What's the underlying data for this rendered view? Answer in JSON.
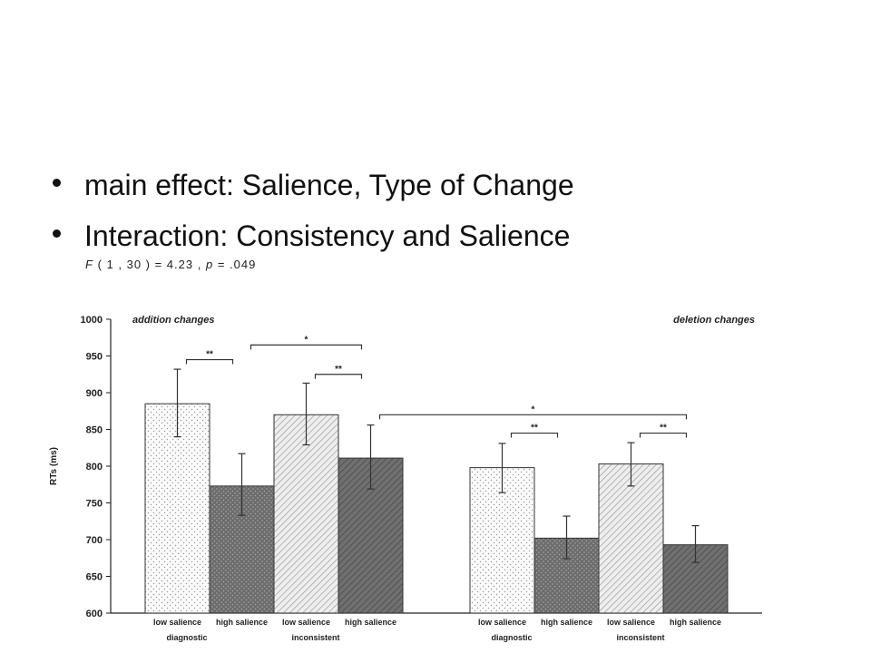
{
  "slide": {
    "bullets": [
      "main effect: Salience,  Type of Change",
      "Interaction: Consistency and Salience"
    ],
    "stat": {
      "f": "F",
      "df": "( 1 , 30 ) = 4.23 ,",
      "p": "p",
      "pval": "= .049"
    }
  },
  "chart_data": {
    "type": "bar",
    "ylabel": "RTs (ms)",
    "ylim": [
      600,
      1000
    ],
    "yticks": [
      600,
      650,
      700,
      750,
      800,
      850,
      900,
      950,
      1000
    ],
    "panels": [
      {
        "title": "addition changes",
        "groups": [
          "diagnostic",
          "inconsistent"
        ],
        "bars": [
          {
            "group": "diagnostic",
            "label": "low salience",
            "value": 885,
            "err_low": 840,
            "err_high": 932,
            "pattern": "dots"
          },
          {
            "group": "diagnostic",
            "label": "high salience",
            "value": 773,
            "err_low": 733,
            "err_high": 817,
            "pattern": "dark-dots"
          },
          {
            "group": "inconsistent",
            "label": "low salience",
            "value": 870,
            "err_low": 829,
            "err_high": 913,
            "pattern": "hatch"
          },
          {
            "group": "inconsistent",
            "label": "high salience",
            "value": 811,
            "err_low": 769,
            "err_high": 856,
            "pattern": "dark-hatch"
          }
        ]
      },
      {
        "title": "deletion changes",
        "groups": [
          "diagnostic",
          "inconsistent"
        ],
        "bars": [
          {
            "group": "diagnostic",
            "label": "low salience",
            "value": 798,
            "err_low": 764,
            "err_high": 831,
            "pattern": "dots"
          },
          {
            "group": "diagnostic",
            "label": "high salience",
            "value": 702,
            "err_low": 674,
            "err_high": 732,
            "pattern": "dark-dots"
          },
          {
            "group": "inconsistent",
            "label": "low salience",
            "value": 803,
            "err_low": 773,
            "err_high": 832,
            "pattern": "hatch"
          },
          {
            "group": "inconsistent",
            "label": "high salience",
            "value": 693,
            "err_low": 669,
            "err_high": 719,
            "pattern": "dark-hatch"
          }
        ]
      }
    ],
    "significance": [
      {
        "from": 0,
        "to": 1,
        "y": 945,
        "label": "**"
      },
      {
        "from": 1,
        "to": 3,
        "y": 965,
        "label": "*"
      },
      {
        "from": 2,
        "to": 3,
        "y": 925,
        "label": "**"
      },
      {
        "from": 3,
        "to": 7,
        "y": 870,
        "label": "*"
      },
      {
        "from": 4,
        "to": 5,
        "y": 845,
        "label": "**"
      },
      {
        "from": 6,
        "to": 7,
        "y": 845,
        "label": "**"
      }
    ]
  }
}
